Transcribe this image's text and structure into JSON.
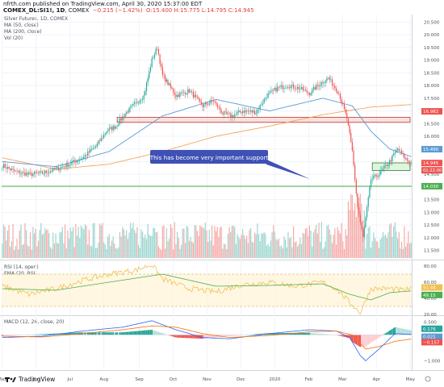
{
  "header": {
    "line1": "nfrth.com published on TradingView.com, April 30, 2020 15:37:00 EDT",
    "symbol": "COMEX_DL:SI1!, 1D",
    "symbol_suffix": ", COMEX",
    "ohlc": "O:15.400  H:15.775  L:14.795  C:14.945",
    "change": "−0.215 (−1.42%)"
  },
  "legend": {
    "title": "Silver Futures, 1D, COMEX",
    "ma50": "MA (50, close)",
    "ma200": "MA (200, close)",
    "vol": "Vol (20)",
    "rsi": "RSI (14, open)",
    "ema": "EMA (20, RSI)",
    "macd": "MACD (12, 26, close, 20)"
  },
  "annotation": "This has become very important support",
  "footer": {
    "brand": "TradingView"
  },
  "colors": {
    "up": "#26a69a",
    "down": "#ef5350",
    "ma50": "#5b9bd5",
    "ma200": "#f7a35c",
    "zone": "#f6c9c6",
    "support": "#4caf50",
    "annotation": "#3f51b5",
    "rsi": "#f0c050",
    "ema": "#4caf50"
  },
  "chart_data": [
    {
      "type": "candlestick",
      "title": "Silver Futures, 1D, COMEX",
      "x_ticks": [
        "May",
        "Jun",
        "Jul",
        "Aug",
        "Sep",
        "Oct",
        "Nov",
        "Dec",
        "2020",
        "Feb",
        "Mar",
        "Apr",
        "May"
      ],
      "y_ticks": [
        "20.500",
        "20.000",
        "19.500",
        "19.000",
        "18.500",
        "18.000",
        "17.500",
        "17.000",
        "16.500",
        "16.000",
        "15.500",
        "15.000",
        "14.500",
        "14.000",
        "13.500",
        "13.000",
        "12.500",
        "12.000",
        "11.500"
      ],
      "ylim": [
        11.2,
        20.8
      ],
      "price_tags": [
        {
          "label": "16.982",
          "value": 16.982,
          "color": "#ef5350"
        },
        {
          "label": "15.490",
          "value": 15.49,
          "color": "#5b9bd5"
        },
        {
          "label": "14.945",
          "value": 14.945,
          "color": "#ef5350"
        },
        {
          "label": "14.030",
          "value": 14.03,
          "color": "#4caf50"
        }
      ],
      "countdown_tag": "01:22:00",
      "support_line": 14.03,
      "resistance_zone": [
        16.55,
        16.75
      ],
      "current_zone": [
        14.65,
        14.95
      ],
      "close_anchors": [
        [
          0,
          14.85
        ],
        [
          10,
          14.6
        ],
        [
          20,
          14.5
        ],
        [
          30,
          14.55
        ],
        [
          40,
          14.7
        ],
        [
          50,
          14.9
        ],
        [
          60,
          15.15
        ],
        [
          70,
          15.6
        ],
        [
          78,
          16.2
        ],
        [
          85,
          16.4
        ],
        [
          92,
          16.9
        ],
        [
          100,
          17.3
        ],
        [
          106,
          17.6
        ],
        [
          112,
          19.0
        ],
        [
          116,
          19.5
        ],
        [
          120,
          18.4
        ],
        [
          130,
          17.6
        ],
        [
          140,
          17.8
        ],
        [
          150,
          17.2
        ],
        [
          158,
          17.4
        ],
        [
          165,
          16.9
        ],
        [
          172,
          16.8
        ],
        [
          180,
          17.0
        ],
        [
          190,
          16.95
        ],
        [
          198,
          17.6
        ],
        [
          206,
          17.9
        ],
        [
          214,
          18.0
        ],
        [
          222,
          17.9
        ],
        [
          230,
          17.7
        ],
        [
          236,
          18.0
        ],
        [
          244,
          18.3
        ],
        [
          252,
          17.7
        ],
        [
          258,
          16.7
        ],
        [
          262,
          15.4
        ],
        [
          266,
          13.2
        ],
        [
          270,
          12.0
        ],
        [
          276,
          14.3
        ],
        [
          282,
          14.5
        ],
        [
          290,
          15.0
        ],
        [
          296,
          15.5
        ],
        [
          302,
          15.1
        ],
        [
          306,
          14.95
        ]
      ],
      "ma50_anchors": [
        [
          0,
          15.0
        ],
        [
          40,
          14.8
        ],
        [
          80,
          15.4
        ],
        [
          120,
          16.8
        ],
        [
          160,
          17.45
        ],
        [
          200,
          17.0
        ],
        [
          240,
          17.5
        ],
        [
          262,
          17.2
        ],
        [
          276,
          16.2
        ],
        [
          290,
          15.5
        ],
        [
          306,
          15.2
        ]
      ],
      "ma200_anchors": [
        [
          0,
          15.15
        ],
        [
          40,
          14.7
        ],
        [
          80,
          14.9
        ],
        [
          120,
          15.4
        ],
        [
          160,
          16.0
        ],
        [
          200,
          16.4
        ],
        [
          240,
          16.85
        ],
        [
          276,
          17.15
        ],
        [
          306,
          17.25
        ]
      ],
      "volume_color_rule": "up/down"
    },
    {
      "type": "line",
      "title": "RSI (14, open)",
      "ylim": [
        20,
        85
      ],
      "y_ticks": [
        "80.00",
        "60.00",
        "40.00",
        "20.00"
      ],
      "band": [
        30,
        70
      ],
      "price_tags": [
        {
          "label": "51.44",
          "value": 51.44,
          "color": "#f0c050"
        },
        {
          "label": "49.15",
          "value": 49.15,
          "color": "#4caf50"
        }
      ],
      "rsi_anchors": [
        [
          0,
          55
        ],
        [
          20,
          45
        ],
        [
          40,
          52
        ],
        [
          60,
          62
        ],
        [
          80,
          70
        ],
        [
          100,
          75
        ],
        [
          112,
          82
        ],
        [
          120,
          64
        ],
        [
          140,
          52
        ],
        [
          160,
          48
        ],
        [
          180,
          57
        ],
        [
          200,
          60
        ],
        [
          220,
          55
        ],
        [
          240,
          60
        ],
        [
          250,
          52
        ],
        [
          260,
          35
        ],
        [
          268,
          22
        ],
        [
          276,
          52
        ],
        [
          290,
          52
        ],
        [
          300,
          50
        ],
        [
          306,
          51.4
        ]
      ],
      "ema_anchors": [
        [
          0,
          52
        ],
        [
          40,
          50
        ],
        [
          80,
          60
        ],
        [
          120,
          70
        ],
        [
          160,
          55
        ],
        [
          200,
          56
        ],
        [
          240,
          58
        ],
        [
          260,
          45
        ],
        [
          276,
          38
        ],
        [
          290,
          47
        ],
        [
          306,
          49.2
        ]
      ]
    },
    {
      "type": "line",
      "title": "MACD (12, 26, close, 20)",
      "ylim": [
        -1.3,
        0.7
      ],
      "y_ticks": [
        "0.500",
        "0.000",
        "−1.000"
      ],
      "price_tags": [
        {
          "label": "0.176",
          "value": 0.176,
          "color": "#26a69a"
        },
        {
          "label": "0.021",
          "value": 0.021,
          "color": "#5b9bd5"
        },
        {
          "label": "−0.157",
          "value": -0.157,
          "color": "#ef5350"
        }
      ],
      "macd_anchors": [
        [
          0,
          -0.1
        ],
        [
          30,
          -0.05
        ],
        [
          60,
          0.15
        ],
        [
          90,
          0.3
        ],
        [
          112,
          0.55
        ],
        [
          130,
          0.2
        ],
        [
          150,
          -0.1
        ],
        [
          170,
          -0.15
        ],
        [
          200,
          0.05
        ],
        [
          230,
          0.2
        ],
        [
          250,
          0.15
        ],
        [
          260,
          -0.1
        ],
        [
          268,
          -0.8
        ],
        [
          272,
          -1.0
        ],
        [
          282,
          -0.55
        ],
        [
          294,
          0.05
        ],
        [
          306,
          0.02
        ]
      ],
      "signal_anchors": [
        [
          0,
          -0.05
        ],
        [
          30,
          -0.08
        ],
        [
          60,
          0.05
        ],
        [
          90,
          0.2
        ],
        [
          112,
          0.35
        ],
        [
          130,
          0.3
        ],
        [
          150,
          0.05
        ],
        [
          170,
          -0.1
        ],
        [
          200,
          -0.02
        ],
        [
          230,
          0.12
        ],
        [
          250,
          0.15
        ],
        [
          262,
          0.0
        ],
        [
          272,
          -0.55
        ],
        [
          282,
          -0.45
        ],
        [
          294,
          -0.25
        ],
        [
          306,
          -0.16
        ]
      ]
    }
  ]
}
